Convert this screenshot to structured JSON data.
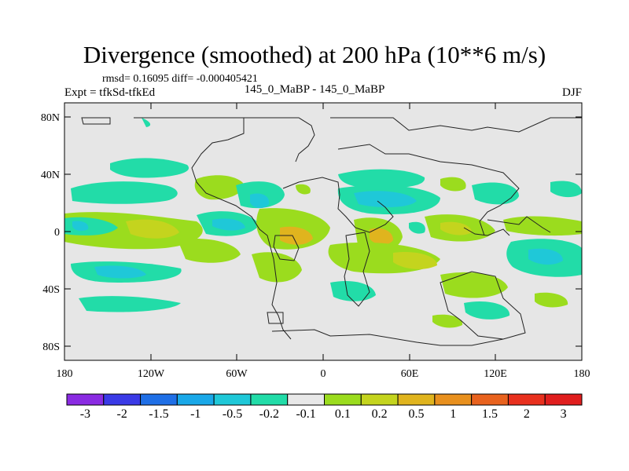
{
  "title": "Divergence (smoothed) at 200 hPa (10**6 m/s)",
  "stats": "rmsd= 0.16095 diff= -0.000405421",
  "expt": "Expt = tfkSd-tfkEd",
  "center_label": "145_0_MaBP - 145_0_MaBP",
  "season": "DJF",
  "colors": {
    "background": "#e6e6e6",
    "scale": [
      "#8a2be2",
      "#3a3ae6",
      "#1f6fe6",
      "#19a8e8",
      "#1fc8d8",
      "#22dca8",
      "#e8e8e8",
      "#9bdc1e",
      "#c4d41e",
      "#e0b41e",
      "#e8901e",
      "#e8621e",
      "#e8301e",
      "#e01e1e"
    ]
  },
  "chart_data": {
    "type": "heatmap",
    "title": "Divergence (smoothed) at 200 hPa (10**6 m/s)",
    "variable": "divergence",
    "level": "200 hPa",
    "units": "10**6 m/s",
    "x_ticks": [
      "180",
      "120W",
      "60W",
      "0",
      "60E",
      "120E",
      "180"
    ],
    "y_ticks": [
      "80N",
      "40N",
      "0",
      "40S",
      "80S"
    ],
    "colorbar_labels": [
      "-3",
      "-2",
      "-1.5",
      "-1",
      "-0.5",
      "-0.2",
      "-0.1",
      "0.1",
      "0.2",
      "0.5",
      "1",
      "1.5",
      "2",
      "3"
    ]
  }
}
